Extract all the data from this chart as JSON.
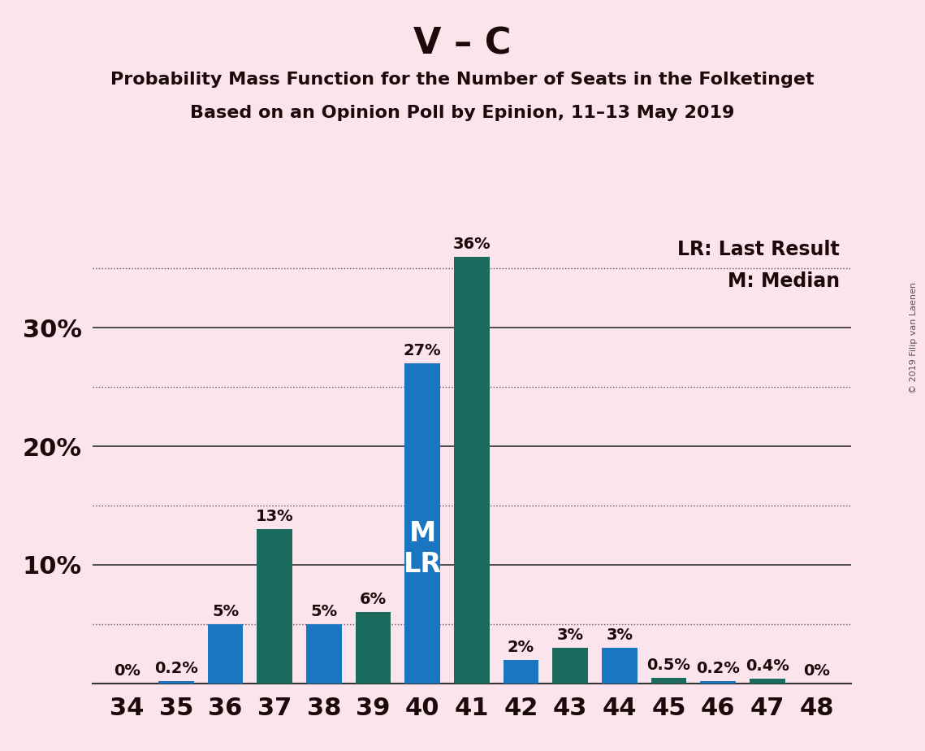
{
  "title": "V – C",
  "subtitle1": "Probability Mass Function for the Number of Seats in the Folketinget",
  "subtitle2": "Based on an Opinion Poll by Epinion, 11–13 May 2019",
  "copyright": "© 2019 Filip van Laenen",
  "legend_lr": "LR: Last Result",
  "legend_m": "M: Median",
  "background_color": "#fce4ec",
  "seats": [
    34,
    35,
    36,
    37,
    38,
    39,
    40,
    41,
    42,
    43,
    44,
    45,
    46,
    47,
    48
  ],
  "values": [
    0.0,
    0.2,
    5.0,
    13.0,
    5.0,
    6.0,
    27.0,
    36.0,
    2.0,
    3.0,
    3.0,
    0.5,
    0.2,
    0.4,
    0.0
  ],
  "colors": [
    "#1a76c0",
    "#1a76c0",
    "#1a76c0",
    "#1a6b5e",
    "#1a76c0",
    "#1a6b5e",
    "#1a76c0",
    "#1a6b5e",
    "#1a76c0",
    "#1a6b5e",
    "#1a76c0",
    "#1a6b5e",
    "#1a76c0",
    "#1a6b5e",
    "#1a6b5e"
  ],
  "bar_width": 0.72,
  "ylim": [
    0,
    38
  ],
  "solid_grid": [
    10,
    20,
    30
  ],
  "dotted_grid": [
    5,
    15,
    25,
    35
  ],
  "ytick_labels_positions": [
    10,
    20,
    30
  ],
  "ytick_labels_values": [
    "10%",
    "20%",
    "30%"
  ],
  "median_seat": 40,
  "lr_seat": 40,
  "title_fontsize": 32,
  "subtitle_fontsize": 16,
  "label_fontsize": 14,
  "tick_fontsize": 22,
  "legend_fontsize": 17,
  "ml_fontsize": 24,
  "copyright_fontsize": 8
}
